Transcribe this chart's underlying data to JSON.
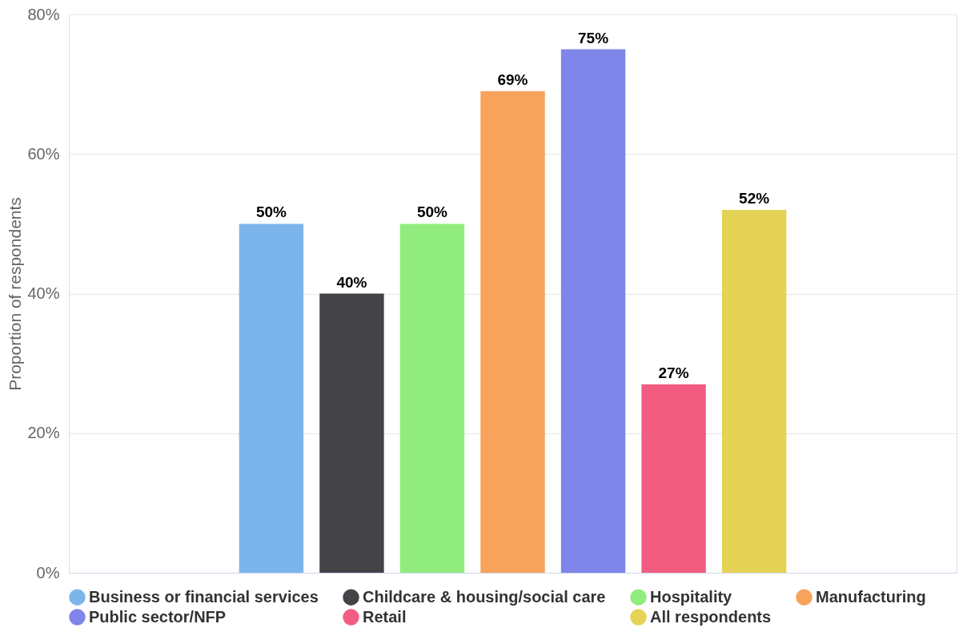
{
  "chart_data": {
    "type": "bar",
    "ylabel": "Proportion of respondents",
    "categories": [
      null
    ],
    "series": [
      {
        "name": "Business or financial services",
        "color": "#7cb5ec",
        "values": [
          50
        ],
        "value_labels": [
          "50%"
        ]
      },
      {
        "name": "Childcare & housing/social care",
        "color": "#434348",
        "values": [
          40
        ],
        "value_labels": [
          "40%"
        ]
      },
      {
        "name": "Hospitality",
        "color": "#90ed7d",
        "values": [
          50
        ],
        "value_labels": [
          "50%"
        ]
      },
      {
        "name": "Manufacturing",
        "color": "#f7a35c",
        "values": [
          69
        ],
        "value_labels": [
          "69%"
        ]
      },
      {
        "name": "Public sector/NFP",
        "color": "#8085e9",
        "values": [
          75
        ],
        "value_labels": [
          "75%"
        ]
      },
      {
        "name": "Retail",
        "color": "#f15c80",
        "values": [
          27
        ],
        "value_labels": [
          "27%"
        ]
      },
      {
        "name": "All respondents",
        "color": "#e4d354",
        "values": [
          52
        ],
        "value_labels": [
          "52%"
        ]
      }
    ],
    "ylim": [
      0,
      80
    ],
    "yticks": [
      {
        "value": 0,
        "label": "0%"
      },
      {
        "value": 20,
        "label": "20%"
      },
      {
        "value": 40,
        "label": "40%"
      },
      {
        "value": 60,
        "label": "60%"
      },
      {
        "value": 80,
        "label": "80%"
      }
    ],
    "grid": "y",
    "legend": "bottom"
  }
}
